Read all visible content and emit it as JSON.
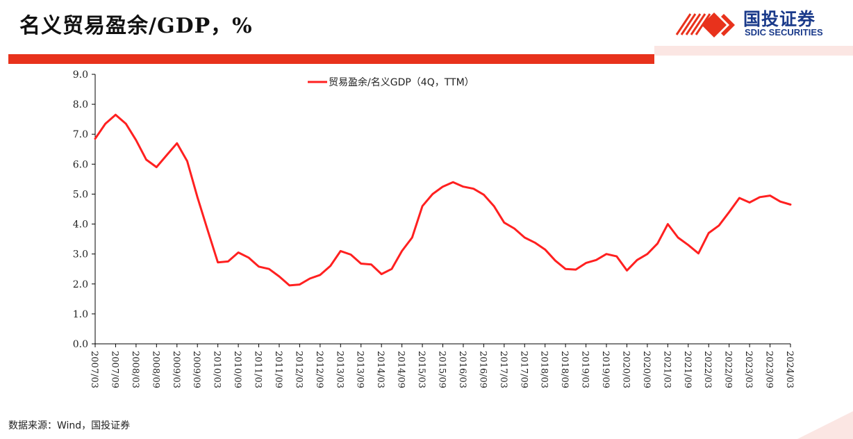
{
  "title": "名义贸易盈余/GDP，%",
  "brand": {
    "name_cn": "国投证券",
    "name_en": "SDIC SECURITIES"
  },
  "source": "数据来源：Wind，国投证券",
  "colors": {
    "accent": "#e8321c",
    "line": "#ff2020",
    "brand": "#1a3a8a"
  },
  "chart_data": {
    "type": "line",
    "title": "",
    "xlabel": "",
    "ylabel": "",
    "ylim": [
      0,
      9
    ],
    "y_ticks": [
      "0.0",
      "1.0",
      "2.0",
      "3.0",
      "4.0",
      "5.0",
      "6.0",
      "7.0",
      "8.0",
      "9.0"
    ],
    "x_tick_labels": [
      "2007/03",
      "2007/09",
      "2008/03",
      "2008/09",
      "2009/03",
      "2009/09",
      "2010/03",
      "2010/09",
      "2011/03",
      "2011/09",
      "2012/03",
      "2012/09",
      "2013/03",
      "2013/09",
      "2014/03",
      "2014/09",
      "2015/03",
      "2015/09",
      "2016/03",
      "2016/09",
      "2017/03",
      "2017/09",
      "2018/03",
      "2018/09",
      "2019/03",
      "2019/09",
      "2020/03",
      "2020/09",
      "2021/03",
      "2021/09",
      "2022/03",
      "2022/09",
      "2023/03",
      "2023/09",
      "2024/03"
    ],
    "legend_position": "top-center",
    "grid": false,
    "x": [
      "2007/03",
      "2007/06",
      "2007/09",
      "2007/12",
      "2008/03",
      "2008/06",
      "2008/09",
      "2008/12",
      "2009/03",
      "2009/06",
      "2009/09",
      "2009/12",
      "2010/03",
      "2010/06",
      "2010/09",
      "2010/12",
      "2011/03",
      "2011/06",
      "2011/09",
      "2011/12",
      "2012/03",
      "2012/06",
      "2012/09",
      "2012/12",
      "2013/03",
      "2013/06",
      "2013/09",
      "2013/12",
      "2014/03",
      "2014/06",
      "2014/09",
      "2014/12",
      "2015/03",
      "2015/06",
      "2015/09",
      "2015/12",
      "2016/03",
      "2016/06",
      "2016/09",
      "2016/12",
      "2017/03",
      "2017/06",
      "2017/09",
      "2017/12",
      "2018/03",
      "2018/06",
      "2018/09",
      "2018/12",
      "2019/03",
      "2019/06",
      "2019/09",
      "2019/12",
      "2020/03",
      "2020/06",
      "2020/09",
      "2020/12",
      "2021/03",
      "2021/06",
      "2021/09",
      "2021/12",
      "2022/03",
      "2022/06",
      "2022/09",
      "2022/12",
      "2023/03",
      "2023/06",
      "2023/09",
      "2023/12",
      "2024/03"
    ],
    "series": [
      {
        "name": "贸易盈余/名义GDP（4Q，TTM）",
        "values": [
          6.85,
          7.35,
          7.65,
          7.35,
          6.8,
          6.15,
          5.9,
          6.3,
          6.7,
          6.1,
          4.9,
          3.8,
          2.72,
          2.75,
          3.05,
          2.88,
          2.58,
          2.5,
          2.25,
          1.95,
          1.98,
          2.18,
          2.3,
          2.6,
          3.1,
          2.98,
          2.68,
          2.65,
          2.33,
          2.5,
          3.1,
          3.55,
          4.6,
          5.0,
          5.25,
          5.4,
          5.25,
          5.18,
          4.98,
          4.6,
          4.05,
          3.85,
          3.55,
          3.38,
          3.15,
          2.78,
          2.5,
          2.48,
          2.7,
          2.8,
          3.0,
          2.92,
          2.45,
          2.8,
          3.0,
          3.35,
          4.0,
          3.55,
          3.3,
          3.02,
          3.7,
          3.95,
          4.4,
          4.87,
          4.72,
          4.9,
          4.95,
          4.75,
          4.65
        ]
      }
    ]
  }
}
